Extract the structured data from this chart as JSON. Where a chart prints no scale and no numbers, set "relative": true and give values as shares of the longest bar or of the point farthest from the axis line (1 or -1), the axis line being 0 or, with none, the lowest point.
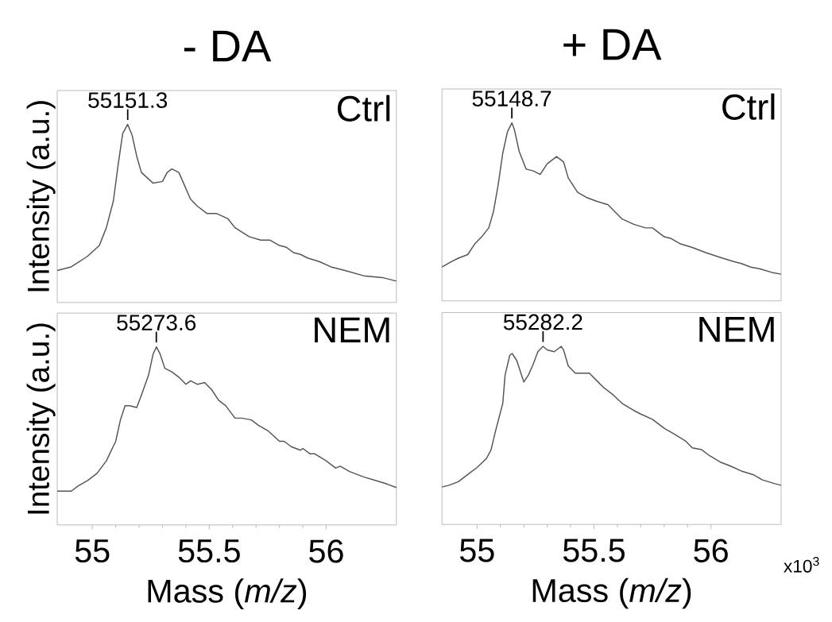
{
  "chart_data": [
    {
      "type": "line",
      "title": "- DA",
      "ylabel": "Intensity (a.u.)",
      "relative": true,
      "xlim": [
        54.85,
        56.3
      ],
      "tick_labels": false,
      "color": "#555555",
      "x": [
        54.85,
        54.91,
        54.98,
        55.03,
        55.06,
        55.09,
        55.11,
        55.13,
        55.151,
        55.17,
        55.19,
        55.21,
        55.26,
        55.3,
        55.32,
        55.34,
        55.37,
        55.39,
        55.42,
        55.45,
        55.49,
        55.53,
        55.58,
        55.61,
        55.67,
        55.72,
        55.76,
        55.8,
        55.83,
        55.86,
        55.89,
        55.92,
        55.97,
        56.02,
        56.08,
        56.16,
        56.24,
        56.3
      ],
      "values": [
        0.18,
        0.2,
        0.26,
        0.32,
        0.42,
        0.57,
        0.77,
        0.95,
        1,
        0.94,
        0.82,
        0.73,
        0.67,
        0.68,
        0.73,
        0.75,
        0.73,
        0.67,
        0.58,
        0.54,
        0.5,
        0.5,
        0.47,
        0.42,
        0.37,
        0.35,
        0.35,
        0.32,
        0.31,
        0.28,
        0.27,
        0.25,
        0.23,
        0.2,
        0.18,
        0.15,
        0.14,
        0.12
      ],
      "annotations": [
        {
          "text": "55151.3",
          "x": 55.1513,
          "y": 1
        },
        "Ctrl"
      ]
    },
    {
      "type": "line",
      "title": "+ DA",
      "relative": true,
      "xlim": [
        54.85,
        56.3
      ],
      "tick_labels": false,
      "color": "#555555",
      "x": [
        54.85,
        54.89,
        54.92,
        54.96,
        54.99,
        55.02,
        55.05,
        55.07,
        55.09,
        55.11,
        55.13,
        55.149,
        55.16,
        55.18,
        55.21,
        55.24,
        55.27,
        55.3,
        55.34,
        55.37,
        55.39,
        55.43,
        55.47,
        55.51,
        55.56,
        55.59,
        55.62,
        55.67,
        55.72,
        55.75,
        55.77,
        55.8,
        55.83,
        55.87,
        55.92,
        55.98,
        56.05,
        56.1,
        56.13,
        56.17,
        56.21,
        56.26,
        56.3
      ],
      "values": [
        0.19,
        0.22,
        0.24,
        0.26,
        0.32,
        0.36,
        0.41,
        0.5,
        0.65,
        0.83,
        0.95,
        1,
        0.96,
        0.84,
        0.74,
        0.73,
        0.71,
        0.77,
        0.81,
        0.78,
        0.69,
        0.61,
        0.58,
        0.56,
        0.54,
        0.5,
        0.46,
        0.43,
        0.41,
        0.41,
        0.39,
        0.36,
        0.35,
        0.32,
        0.3,
        0.27,
        0.24,
        0.22,
        0.21,
        0.19,
        0.18,
        0.16,
        0.15
      ],
      "annotations": [
        {
          "text": "55148.7",
          "x": 55.1487,
          "y": 1
        },
        "Ctrl"
      ]
    },
    {
      "type": "line",
      "xlabel": "Mass (*m/z*)",
      "ylabel": "Intensity (a.u.)",
      "relative": true,
      "xlim": [
        54.85,
        56.3
      ],
      "xticks": [
        55,
        55.5,
        56
      ],
      "tick_labels": "x",
      "color": "#555555",
      "x": [
        54.85,
        54.89,
        54.91,
        54.94,
        54.98,
        55.02,
        55.06,
        55.1,
        55.12,
        55.14,
        55.16,
        55.19,
        55.21,
        55.24,
        55.26,
        55.274,
        55.29,
        55.31,
        55.34,
        55.37,
        55.4,
        55.42,
        55.45,
        55.48,
        55.51,
        55.54,
        55.57,
        55.61,
        55.64,
        55.68,
        55.71,
        55.75,
        55.8,
        55.82,
        55.85,
        55.89,
        55.9,
        55.93,
        55.95,
        56,
        56.04,
        56.06,
        56.1,
        56.16,
        56.21,
        56.26,
        56.3
      ],
      "values": [
        0.19,
        0.19,
        0.19,
        0.22,
        0.25,
        0.29,
        0.36,
        0.47,
        0.59,
        0.67,
        0.67,
        0.66,
        0.73,
        0.84,
        0.96,
        1,
        0.96,
        0.88,
        0.86,
        0.83,
        0.79,
        0.81,
        0.79,
        0.8,
        0.76,
        0.7,
        0.67,
        0.6,
        0.6,
        0.59,
        0.56,
        0.53,
        0.47,
        0.47,
        0.44,
        0.42,
        0.43,
        0.4,
        0.4,
        0.36,
        0.32,
        0.33,
        0.3,
        0.27,
        0.25,
        0.23,
        0.21
      ],
      "annotations": [
        {
          "text": "55273.6",
          "x": 55.2736,
          "y": 1
        },
        "NEM"
      ]
    },
    {
      "type": "line",
      "xlabel": "Mass (*m/z*)",
      "relative": true,
      "xlim": [
        54.85,
        56.3
      ],
      "xticks": [
        55,
        55.5,
        56
      ],
      "tick_labels": "x",
      "color": "#555555",
      "x": [
        54.85,
        54.88,
        54.92,
        54.97,
        55.0,
        55.04,
        55.06,
        55.08,
        55.11,
        55.12,
        55.14,
        55.15,
        55.17,
        55.19,
        55.2,
        55.22,
        55.24,
        55.26,
        55.282,
        55.3,
        55.33,
        55.36,
        55.37,
        55.39,
        55.42,
        55.45,
        55.48,
        55.51,
        55.54,
        55.58,
        55.62,
        55.67,
        55.7,
        55.75,
        55.8,
        55.84,
        55.89,
        55.92,
        55.96,
        55.99,
        56.04,
        56.08,
        56.13,
        56.18,
        56.22,
        56.27,
        56.3
      ],
      "values": [
        0.21,
        0.22,
        0.24,
        0.29,
        0.32,
        0.37,
        0.42,
        0.53,
        0.68,
        0.84,
        0.95,
        0.96,
        0.92,
        0.84,
        0.8,
        0.84,
        0.9,
        0.97,
        1,
        0.98,
        0.97,
        1,
        0.98,
        0.89,
        0.85,
        0.85,
        0.85,
        0.81,
        0.77,
        0.73,
        0.68,
        0.64,
        0.62,
        0.59,
        0.54,
        0.51,
        0.47,
        0.43,
        0.42,
        0.39,
        0.35,
        0.33,
        0.3,
        0.28,
        0.25,
        0.23,
        0.22
      ],
      "annotations": [
        {
          "text": "55282.2",
          "x": 55.2822,
          "y": 1
        },
        "NEM",
        "x10$^{3}$"
      ]
    }
  ]
}
